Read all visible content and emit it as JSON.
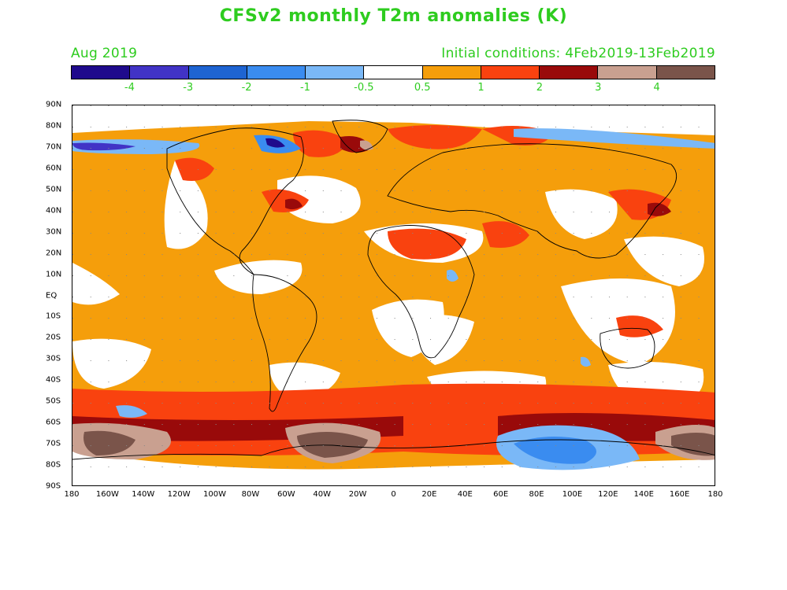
{
  "title": "CFSv2 monthly T2m anomalies (K)",
  "valid_month": "Aug 2019",
  "init_conditions": "Initial conditions: 4Feb2019-13Feb2019",
  "colorbar": {
    "colors": [
      "#1f0a8c",
      "#4133c6",
      "#1e64d2",
      "#3a8cf0",
      "#7ab8f7",
      "#ffffff",
      "#f59e0b",
      "#f9420f",
      "#990a0a",
      "#c9a090",
      "#7a544a"
    ],
    "labels": [
      "-4",
      "-3",
      "-2",
      "-1",
      "-0.5",
      "0.5",
      "1",
      "2",
      "3",
      "4"
    ]
  },
  "lat_labels": [
    "90N",
    "80N",
    "70N",
    "60N",
    "50N",
    "40N",
    "30N",
    "20N",
    "10N",
    "EQ",
    "10S",
    "20S",
    "30S",
    "40S",
    "50S",
    "60S",
    "70S",
    "80S",
    "90S"
  ],
  "lon_labels": [
    "180",
    "160W",
    "140W",
    "120W",
    "100W",
    "80W",
    "60W",
    "40W",
    "20W",
    "0",
    "20E",
    "40E",
    "60E",
    "80E",
    "100E",
    "120E",
    "140E",
    "160E",
    "180"
  ]
}
